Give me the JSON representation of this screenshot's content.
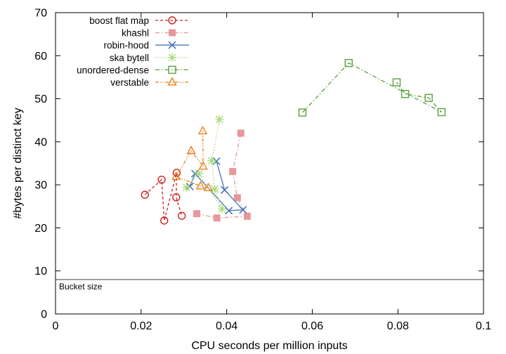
{
  "chart_data": {
    "type": "line",
    "title": "",
    "xlabel": "CPU seconds per million inputs",
    "ylabel": "#bytes per distinct key",
    "xlim": [
      0,
      0.1
    ],
    "ylim": [
      0,
      70
    ],
    "xticks": [
      "0",
      "0.02",
      "0.04",
      "0.06",
      "0.08",
      "0.1"
    ],
    "yticks": [
      "0",
      "10",
      "20",
      "30",
      "40",
      "50",
      "60",
      "70"
    ],
    "grid": false,
    "legend_position": "top-left",
    "series": [
      {
        "name": "boost flat map",
        "color": "#cc2222",
        "marker": "circle-open",
        "dash": "dashed",
        "x": [
          0.0209,
          0.0248,
          0.0254,
          0.0283,
          0.0282,
          0.0295
        ],
        "y": [
          27.7,
          31.2,
          21.7,
          32.8,
          27.1,
          22.8
        ]
      },
      {
        "name": "khashl",
        "color": "#e8989a",
        "marker": "square-filled",
        "dash": "dashdot",
        "x": [
          0.033,
          0.0377,
          0.0448,
          0.0425,
          0.0414,
          0.0433
        ],
        "y": [
          23.3,
          22.3,
          22.7,
          27.0,
          33.1,
          42.0
        ]
      },
      {
        "name": "robin-hood",
        "color": "#4a78b5",
        "marker": "x",
        "dash": "solid",
        "x": [
          0.0314,
          0.0326,
          0.0405,
          0.0438,
          0.0395,
          0.0376
        ],
        "y": [
          29.6,
          32.6,
          24.0,
          24.2,
          28.8,
          35.5
        ]
      },
      {
        "name": "ska bytell",
        "color": "#a8d878",
        "marker": "star",
        "dash": "dotted",
        "x": [
          0.0306,
          0.0335,
          0.0389,
          0.0372,
          0.0365,
          0.0383
        ],
        "y": [
          29.4,
          32.6,
          24.4,
          29.0,
          35.6,
          45.2
        ]
      },
      {
        "name": "unordered-dense",
        "color": "#5aa03c",
        "marker": "square-open",
        "dash": "dashdot",
        "x": [
          0.0577,
          0.0685,
          0.0902,
          0.0872,
          0.0817,
          0.0797
        ],
        "y": [
          46.8,
          58.3,
          46.9,
          50.2,
          51.1,
          53.8
        ]
      },
      {
        "name": "verstable",
        "color": "#e8821e",
        "marker": "triangle-open",
        "dash": "dashdotdot",
        "x": [
          0.0357,
          0.0339,
          0.0282,
          0.0317,
          0.0345,
          0.0344
        ],
        "y": [
          29.3,
          29.7,
          31.9,
          37.9,
          34.3,
          42.5
        ]
      }
    ],
    "reference_line": {
      "y": 8,
      "label": "Bucket size",
      "color": "#000000"
    }
  }
}
